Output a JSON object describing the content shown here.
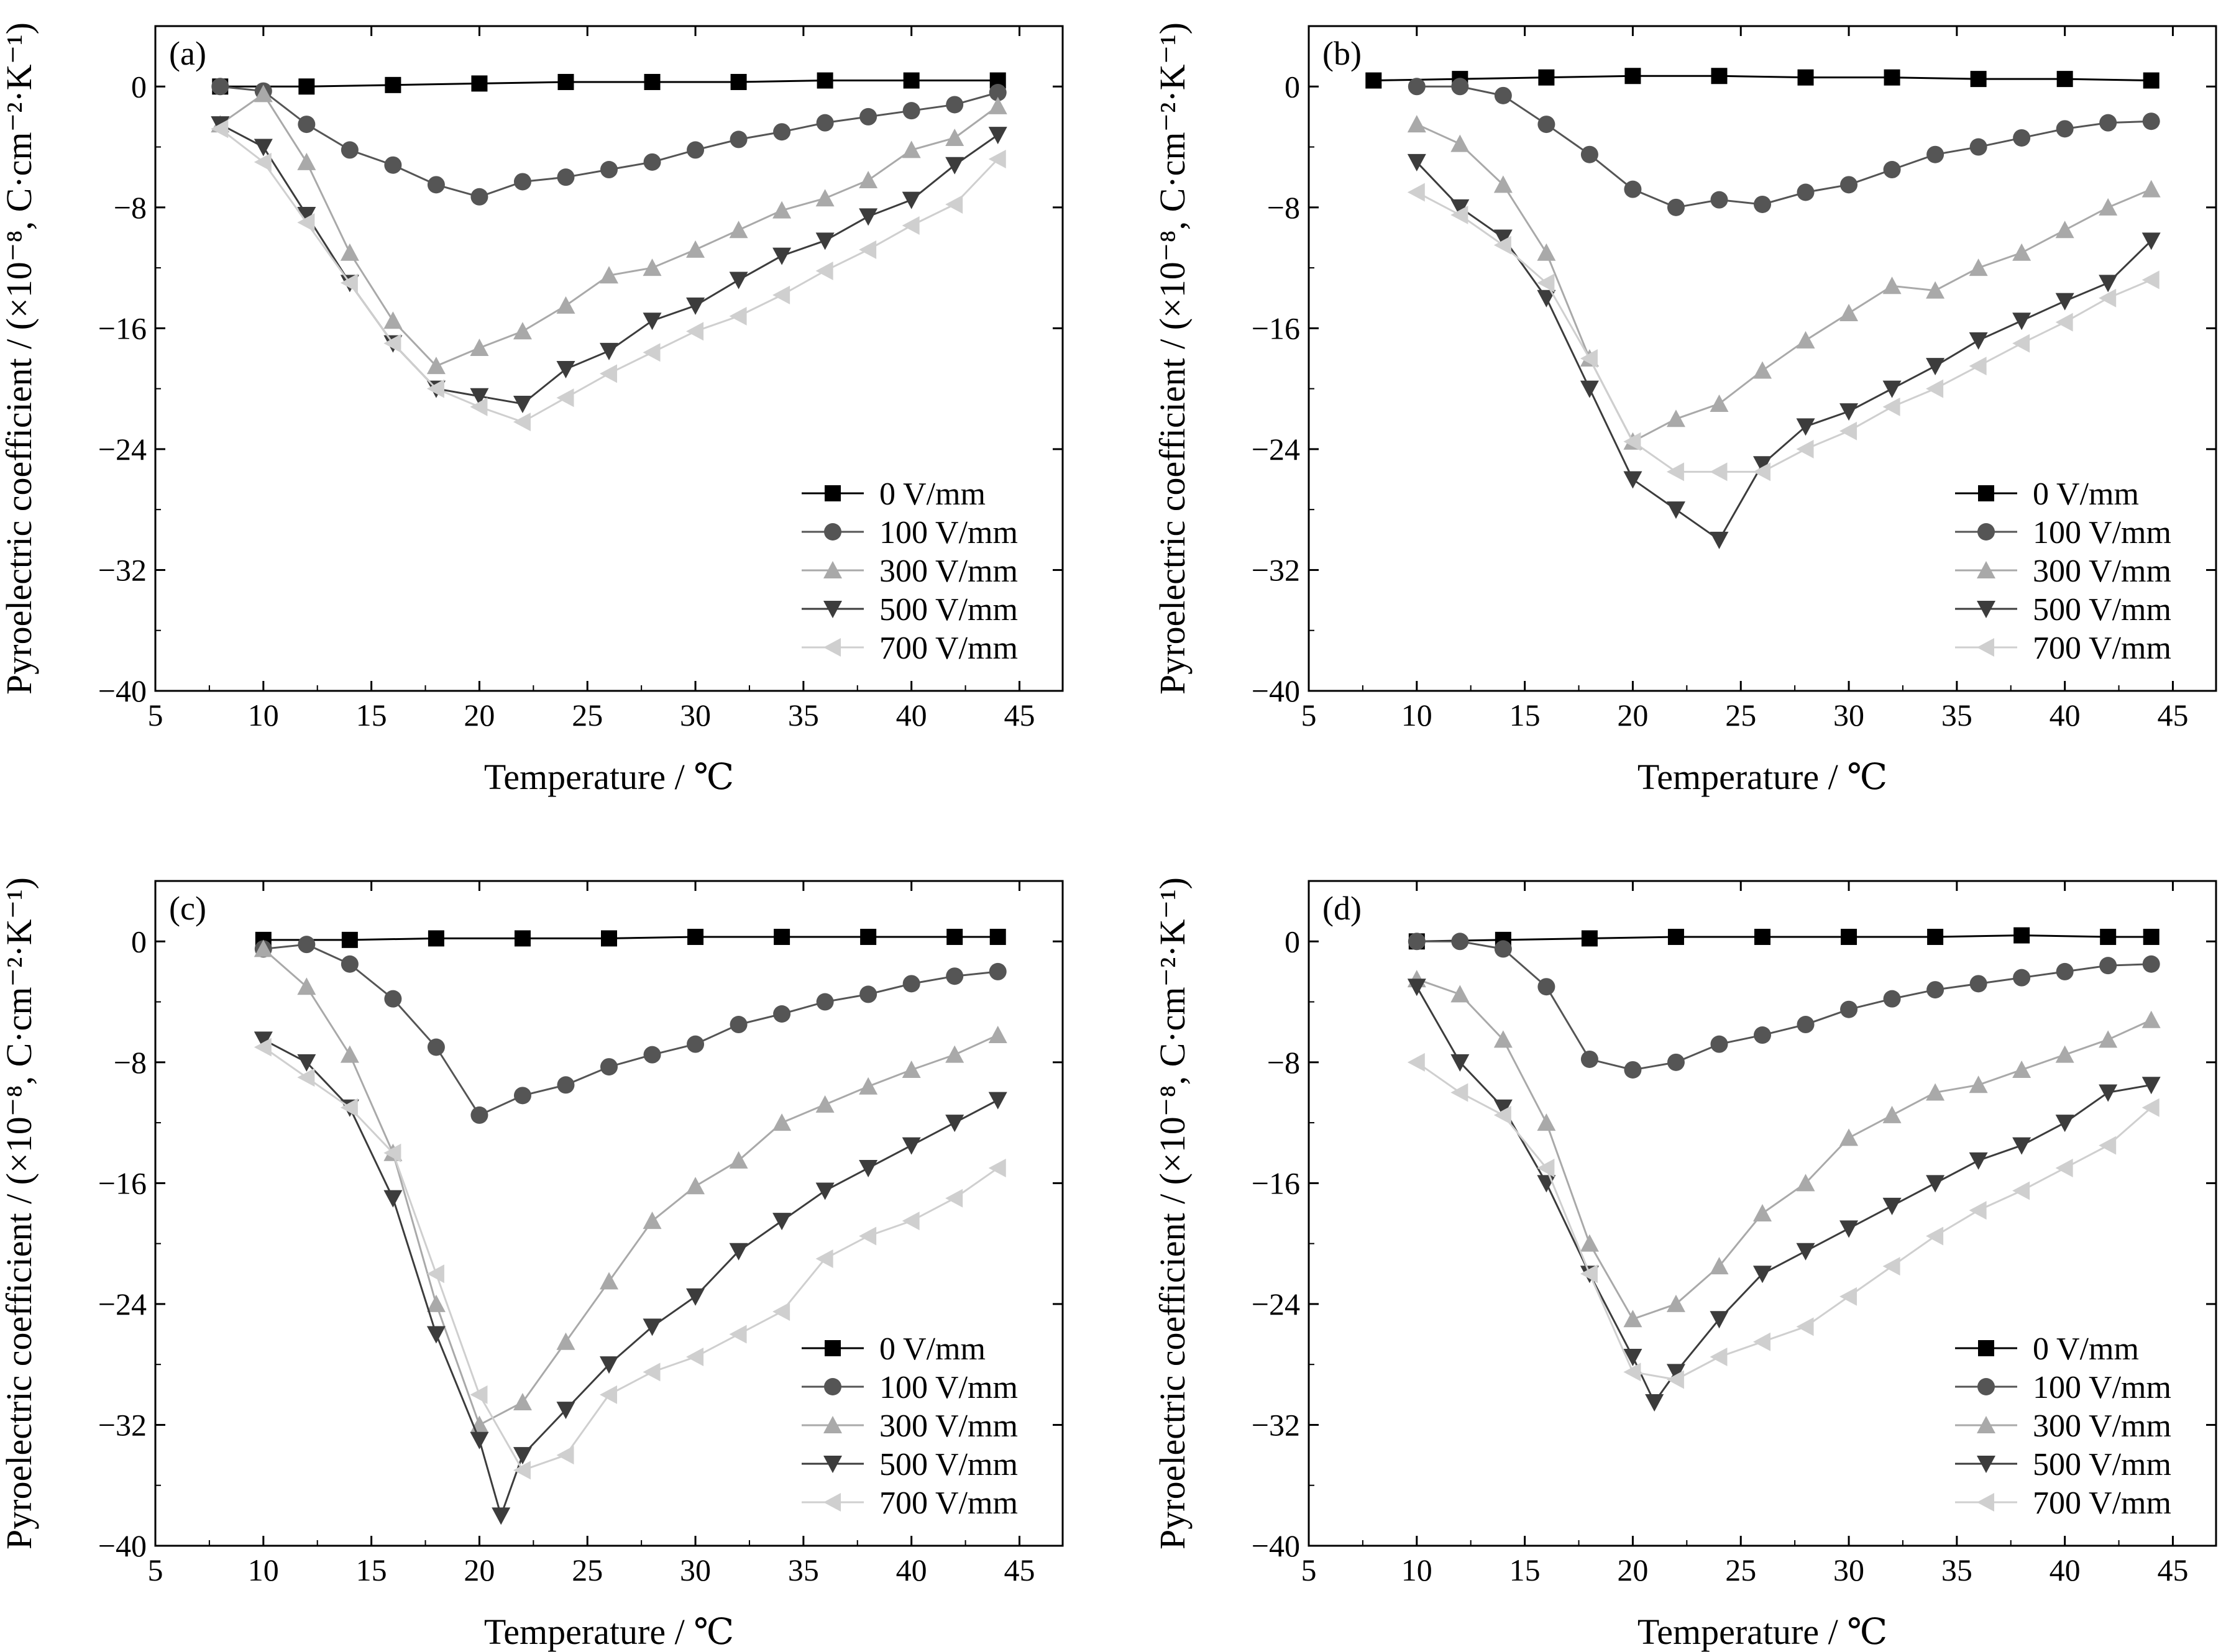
{
  "figure": {
    "colors": {
      "0 V/mm": "#000000",
      "100 V/mm": "#555555",
      "300 V/mm": "#a9a9a9",
      "500 V/mm": "#3c3c3c",
      "700 V/mm": "#cfcfcf"
    },
    "markers": {
      "0 V/mm": "square",
      "100 V/mm": "circle",
      "300 V/mm": "triangle-up",
      "500 V/mm": "triangle-down",
      "700 V/mm": "triangle-left"
    }
  },
  "chart_data": [
    {
      "type": "line",
      "panel_label": "(a)",
      "xlabel": "Temperature / ℃",
      "ylabel": "Pyroelectric coefficient / (×10⁻⁸, C·cm⁻²·K⁻¹)",
      "xlim": [
        5,
        47
      ],
      "ylim": [
        -40,
        4
      ],
      "xticks": [
        5,
        10,
        15,
        20,
        25,
        30,
        35,
        40,
        45
      ],
      "yticks": [
        0,
        -8,
        -16,
        -24,
        -32,
        -40
      ],
      "xtick_labels": [
        "5",
        "10",
        "15",
        "20",
        "25",
        "30",
        "35",
        "40",
        "45"
      ],
      "ytick_labels": [
        "0",
        "−8",
        "−16",
        "−24",
        "−32",
        "−40"
      ],
      "grid": false,
      "legend_position": "bottom-right",
      "series": [
        {
          "name": "0 V/mm",
          "x": [
            8,
            12,
            16,
            20,
            24,
            28,
            32,
            36,
            40,
            44
          ],
          "y": [
            0,
            0,
            0.1,
            0.2,
            0.3,
            0.3,
            0.3,
            0.4,
            0.4,
            0.4
          ]
        },
        {
          "name": "100 V/mm",
          "x": [
            8,
            10,
            12,
            14,
            16,
            18,
            20,
            22,
            24,
            26,
            28,
            30,
            32,
            34,
            36,
            38,
            40,
            42,
            44
          ],
          "y": [
            0,
            -0.3,
            -2.5,
            -4.2,
            -5.2,
            -6.5,
            -7.3,
            -6.3,
            -6.0,
            -5.5,
            -5.0,
            -4.2,
            -3.5,
            -3.0,
            -2.4,
            -2.0,
            -1.6,
            -1.2,
            -0.4
          ]
        },
        {
          "name": "300 V/mm",
          "x": [
            8,
            10,
            12,
            14,
            16,
            18,
            20,
            22,
            24,
            26,
            28,
            30,
            32,
            34,
            36,
            38,
            40,
            42,
            44
          ],
          "y": [
            -2.5,
            -0.5,
            -5,
            -11,
            -15.5,
            -18.5,
            -17.3,
            -16.2,
            -14.5,
            -12.5,
            -12.0,
            -10.8,
            -9.5,
            -8.2,
            -7.4,
            -6.2,
            -4.2,
            -3.4,
            -1.3
          ]
        },
        {
          "name": "500 V/mm",
          "x": [
            8,
            10,
            12,
            14,
            16,
            18,
            20,
            22,
            24,
            26,
            28,
            30,
            32,
            34,
            36,
            38,
            40,
            42,
            44
          ],
          "y": [
            -2.5,
            -4,
            -8.5,
            -13,
            -17,
            -20,
            -20.5,
            -21.0,
            -18.7,
            -17.5,
            -15.5,
            -14.5,
            -12.8,
            -11.2,
            -10.2,
            -8.6,
            -7.5,
            -5.2,
            -3.2
          ]
        },
        {
          "name": "700 V/mm",
          "x": [
            8,
            10,
            12,
            14,
            16,
            18,
            20,
            22,
            24,
            26,
            28,
            30,
            32,
            34,
            36,
            38,
            40,
            42,
            44
          ],
          "y": [
            -2.8,
            -5,
            -9,
            -13,
            -17,
            -20,
            -21.2,
            -22.2,
            -20.6,
            -19.0,
            -17.6,
            -16.2,
            -15.2,
            -13.8,
            -12.2,
            -10.8,
            -9.2,
            -7.8,
            -4.8
          ]
        }
      ]
    },
    {
      "type": "line",
      "panel_label": "(b)",
      "xlabel": "Temperature / ℃",
      "ylabel": "Pyroelectric coefficient / (×10⁻⁸, C·cm⁻²·K⁻¹)",
      "xlim": [
        5,
        47
      ],
      "ylim": [
        -40,
        4
      ],
      "xticks": [
        5,
        10,
        15,
        20,
        25,
        30,
        35,
        40,
        45
      ],
      "yticks": [
        0,
        -8,
        -16,
        -24,
        -32,
        -40
      ],
      "xtick_labels": [
        "5",
        "10",
        "15",
        "20",
        "25",
        "30",
        "35",
        "40",
        "45"
      ],
      "ytick_labels": [
        "0",
        "−8",
        "−16",
        "−24",
        "−32",
        "−40"
      ],
      "grid": false,
      "legend_position": "bottom-right",
      "series": [
        {
          "name": "0 V/mm",
          "x": [
            8,
            12,
            16,
            20,
            24,
            28,
            32,
            36,
            40,
            44
          ],
          "y": [
            0.4,
            0.5,
            0.6,
            0.7,
            0.7,
            0.6,
            0.6,
            0.5,
            0.5,
            0.4
          ]
        },
        {
          "name": "100 V/mm",
          "x": [
            10,
            12,
            14,
            16,
            18,
            20,
            22,
            24,
            26,
            28,
            30,
            32,
            34,
            36,
            38,
            40,
            42,
            44
          ],
          "y": [
            0,
            0,
            -0.6,
            -2.5,
            -4.5,
            -6.8,
            -8.0,
            -7.5,
            -7.8,
            -7.0,
            -6.5,
            -5.5,
            -4.5,
            -4.0,
            -3.4,
            -2.8,
            -2.4,
            -2.3
          ]
        },
        {
          "name": "300 V/mm",
          "x": [
            10,
            12,
            14,
            16,
            18,
            20,
            22,
            24,
            26,
            28,
            30,
            32,
            34,
            36,
            38,
            40,
            42,
            44
          ],
          "y": [
            -2.5,
            -3.8,
            -6.5,
            -11,
            -18,
            -23.5,
            -22.0,
            -21.0,
            -18.8,
            -16.8,
            -15.0,
            -13.2,
            -13.5,
            -12.0,
            -11.0,
            -9.5,
            -8.0,
            -6.8
          ]
        },
        {
          "name": "500 V/mm",
          "x": [
            10,
            12,
            14,
            16,
            18,
            20,
            22,
            24,
            26,
            28,
            30,
            32,
            34,
            36,
            38,
            40,
            42,
            44
          ],
          "y": [
            -5,
            -8,
            -10,
            -14,
            -20,
            -26,
            -28,
            -30,
            -25.0,
            -22.5,
            -21.5,
            -20.0,
            -18.5,
            -16.8,
            -15.5,
            -14.2,
            -13.0,
            -10.2
          ]
        },
        {
          "name": "700 V/mm",
          "x": [
            10,
            12,
            14,
            16,
            18,
            20,
            22,
            24,
            26,
            28,
            30,
            32,
            34,
            36,
            38,
            40,
            42,
            44
          ],
          "y": [
            -7,
            -8.5,
            -10.5,
            -13,
            -18,
            -23.5,
            -25.5,
            -25.5,
            -25.5,
            -24.0,
            -22.8,
            -21.2,
            -20.0,
            -18.5,
            -17.0,
            -15.6,
            -14.0,
            -12.8
          ]
        }
      ]
    },
    {
      "type": "line",
      "panel_label": "(c)",
      "xlabel": "Temperature / ℃",
      "ylabel": "Pyroelectric coefficient / (×10⁻⁸, C·cm⁻²·K⁻¹)",
      "xlim": [
        5,
        47
      ],
      "ylim": [
        -40,
        4
      ],
      "xticks": [
        5,
        10,
        15,
        20,
        25,
        30,
        35,
        40,
        45
      ],
      "yticks": [
        0,
        -8,
        -16,
        -24,
        -32,
        -40
      ],
      "xtick_labels": [
        "5",
        "10",
        "15",
        "20",
        "25",
        "30",
        "35",
        "40",
        "45"
      ],
      "ytick_labels": [
        "0",
        "−8",
        "−16",
        "−24",
        "−32",
        "−40"
      ],
      "grid": false,
      "legend_position": "bottom-right",
      "series": [
        {
          "name": "0 V/mm",
          "x": [
            10,
            14,
            18,
            22,
            26,
            30,
            34,
            38,
            42,
            44
          ],
          "y": [
            0.1,
            0.1,
            0.2,
            0.2,
            0.2,
            0.3,
            0.3,
            0.3,
            0.3,
            0.3
          ]
        },
        {
          "name": "100 V/mm",
          "x": [
            10,
            12,
            14,
            16,
            18,
            20,
            22,
            24,
            26,
            28,
            30,
            32,
            34,
            36,
            38,
            40,
            42,
            44
          ],
          "y": [
            -0.5,
            -0.2,
            -1.5,
            -3.8,
            -7.0,
            -11.5,
            -10.2,
            -9.5,
            -8.3,
            -7.5,
            -6.8,
            -5.5,
            -4.8,
            -4.0,
            -3.5,
            -2.8,
            -2.3,
            -2.0
          ]
        },
        {
          "name": "300 V/mm",
          "x": [
            10,
            12,
            14,
            16,
            18,
            20,
            22,
            24,
            26,
            28,
            30,
            32,
            34,
            36,
            38,
            40,
            42,
            44
          ],
          "y": [
            -0.5,
            -3,
            -7.5,
            -14,
            -24,
            -32,
            -30.5,
            -26.5,
            -22.5,
            -18.5,
            -16.2,
            -14.5,
            -12.0,
            -10.8,
            -9.6,
            -8.5,
            -7.5,
            -6.2
          ]
        },
        {
          "name": "500 V/mm",
          "x": [
            10,
            12,
            14,
            16,
            18,
            20,
            21,
            22,
            24,
            26,
            28,
            30,
            32,
            34,
            36,
            38,
            40,
            42,
            44
          ],
          "y": [
            -6.5,
            -8,
            -11,
            -17,
            -26,
            -33,
            -38,
            -34,
            -31,
            -28,
            -25.5,
            -23.5,
            -20.5,
            -18.5,
            -16.5,
            -15.0,
            -13.5,
            -12.0,
            -10.5
          ]
        },
        {
          "name": "700 V/mm",
          "x": [
            10,
            12,
            14,
            16,
            18,
            20,
            22,
            24,
            26,
            28,
            30,
            32,
            34,
            36,
            38,
            40,
            42,
            44
          ],
          "y": [
            -7,
            -9,
            -11,
            -14,
            -22,
            -30,
            -35,
            -34,
            -30,
            -28.5,
            -27.5,
            -26.0,
            -24.5,
            -21.0,
            -19.5,
            -18.5,
            -17.0,
            -15.0
          ]
        }
      ]
    },
    {
      "type": "line",
      "panel_label": "(d)",
      "xlabel": "Temperature / ℃",
      "ylabel": "Pyroelectric coefficient / (×10⁻⁸, C·cm⁻²·K⁻¹)",
      "xlim": [
        5,
        47
      ],
      "ylim": [
        -40,
        4
      ],
      "xticks": [
        5,
        10,
        15,
        20,
        25,
        30,
        35,
        40,
        45
      ],
      "yticks": [
        0,
        -8,
        -16,
        -24,
        -32,
        -40
      ],
      "xtick_labels": [
        "5",
        "10",
        "15",
        "20",
        "25",
        "30",
        "35",
        "40",
        "45"
      ],
      "ytick_labels": [
        "0",
        "−8",
        "−16",
        "−24",
        "−32",
        "−40"
      ],
      "grid": false,
      "legend_position": "bottom-right",
      "series": [
        {
          "name": "0 V/mm",
          "x": [
            10,
            14,
            18,
            22,
            26,
            30,
            34,
            38,
            42,
            44
          ],
          "y": [
            0,
            0.1,
            0.2,
            0.3,
            0.3,
            0.3,
            0.3,
            0.4,
            0.3,
            0.3
          ]
        },
        {
          "name": "100 V/mm",
          "x": [
            10,
            12,
            14,
            16,
            18,
            20,
            22,
            24,
            26,
            28,
            30,
            32,
            34,
            36,
            38,
            40,
            42,
            44
          ],
          "y": [
            0,
            0,
            -0.5,
            -3.0,
            -7.8,
            -8.5,
            -8.0,
            -6.8,
            -6.2,
            -5.5,
            -4.5,
            -3.8,
            -3.2,
            -2.8,
            -2.4,
            -2.0,
            -1.6,
            -1.5
          ]
        },
        {
          "name": "300 V/mm",
          "x": [
            10,
            12,
            14,
            16,
            18,
            20,
            22,
            24,
            26,
            28,
            30,
            32,
            34,
            36,
            38,
            40,
            42,
            44
          ],
          "y": [
            -2.5,
            -3.5,
            -6.5,
            -12.0,
            -20.0,
            -25.0,
            -24.0,
            -21.5,
            -18.0,
            -16.0,
            -13.0,
            -11.5,
            -10.0,
            -9.5,
            -8.5,
            -7.5,
            -6.5,
            -5.2
          ]
        },
        {
          "name": "500 V/mm",
          "x": [
            10,
            12,
            14,
            16,
            18,
            20,
            21,
            22,
            24,
            26,
            28,
            30,
            32,
            34,
            36,
            38,
            40,
            42,
            44
          ],
          "y": [
            -3.0,
            -8.0,
            -11.0,
            -16.0,
            -22.0,
            -27.5,
            -30.5,
            -28.5,
            -25.0,
            -22.0,
            -20.5,
            -19.0,
            -17.5,
            -16.0,
            -14.5,
            -13.5,
            -12.0,
            -10.0,
            -9.5
          ]
        },
        {
          "name": "700 V/mm",
          "x": [
            10,
            12,
            14,
            16,
            18,
            20,
            22,
            24,
            26,
            28,
            30,
            32,
            34,
            36,
            38,
            40,
            42,
            44
          ],
          "y": [
            -8.0,
            -10.0,
            -11.5,
            -15.0,
            -22.0,
            -28.5,
            -29.0,
            -27.5,
            -26.5,
            -25.5,
            -23.5,
            -21.5,
            -19.5,
            -17.8,
            -16.5,
            -15.0,
            -13.5,
            -11.0
          ]
        }
      ]
    }
  ]
}
